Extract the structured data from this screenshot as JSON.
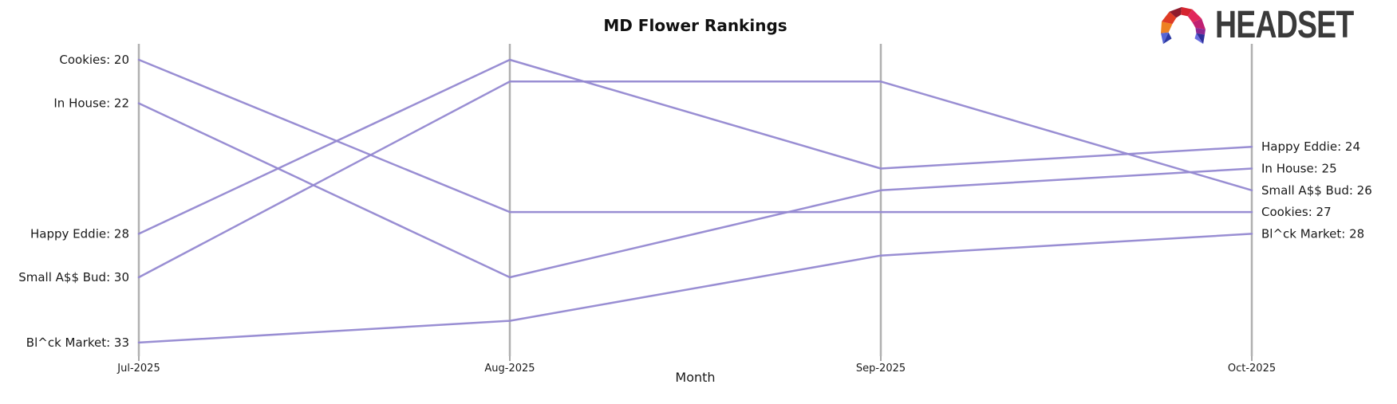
{
  "chart": {
    "title": "MD Flower Rankings"
  },
  "logo": {
    "text": "HEADSET",
    "icon_colors": [
      "#5766d6",
      "#2c39a4",
      "#ee8122",
      "#df3b25",
      "#8f1b2d",
      "#d62430",
      "#e1275b",
      "#c02072",
      "#8c2893",
      "#2e2f9b",
      "#6a6fe0"
    ]
  },
  "chart_data": {
    "type": "line",
    "subtype": "bump-ranking",
    "title": "MD Flower Rankings",
    "xlabel": "Month",
    "ylabel": "",
    "x": [
      "Jul-2025",
      "Aug-2025",
      "Sep-2025",
      "Oct-2025"
    ],
    "y_inverted": true,
    "y_range": [
      20,
      33
    ],
    "grid": false,
    "legend": "inline-labels",
    "line_color": "#9488d1",
    "axis_color": "#b0b0b0",
    "series": [
      {
        "name": "Cookies",
        "values": [
          20,
          27,
          27,
          27
        ]
      },
      {
        "name": "In House",
        "values": [
          22,
          30,
          26,
          25
        ]
      },
      {
        "name": "Happy Eddie",
        "values": [
          28,
          20,
          25,
          24
        ]
      },
      {
        "name": "Small A$$ Bud",
        "values": [
          30,
          21,
          21,
          26
        ]
      },
      {
        "name": "Bl^ck Market",
        "values": [
          33,
          32,
          29,
          28
        ]
      }
    ],
    "left_labels": [
      {
        "text": "Cookies: 20",
        "value": 20
      },
      {
        "text": "In House: 22",
        "value": 22
      },
      {
        "text": "Happy Eddie: 28",
        "value": 28
      },
      {
        "text": "Small A$$ Bud: 30",
        "value": 30
      },
      {
        "text": "Bl^ck Market: 33",
        "value": 33
      }
    ],
    "right_labels": [
      {
        "text": "Happy Eddie: 24",
        "value": 24
      },
      {
        "text": "In House: 25",
        "value": 25
      },
      {
        "text": "Small A$$ Bud: 26",
        "value": 26
      },
      {
        "text": "Cookies: 27",
        "value": 27
      },
      {
        "text": "Bl^ck Market: 28",
        "value": 28
      }
    ]
  }
}
